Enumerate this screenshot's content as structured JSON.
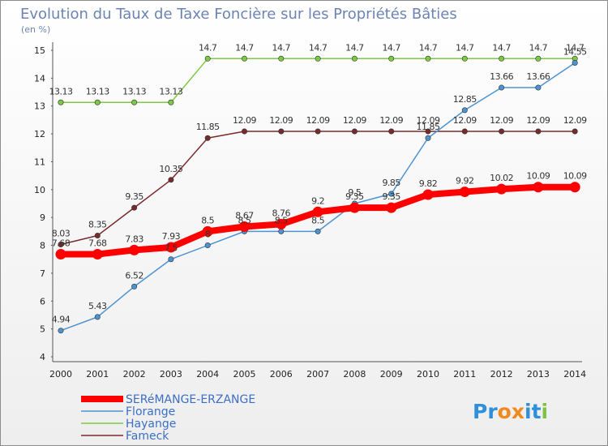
{
  "chart_data": {
    "type": "line",
    "title": "Evolution du Taux de Taxe Foncière sur les Propriétés Bâties",
    "subtitle": "(en %)",
    "x": [
      "2000",
      "2001",
      "2002",
      "2003",
      "2004",
      "2005",
      "2006",
      "2007",
      "2008",
      "2009",
      "2010",
      "2011",
      "2012",
      "2013",
      "2014"
    ],
    "yticks": [
      "4",
      "5",
      "6",
      "7",
      "8",
      "9",
      "10",
      "11",
      "12",
      "13",
      "14",
      "15"
    ],
    "ylim": [
      4,
      15
    ],
    "grid": false,
    "legend_position": "bottom-left",
    "series": [
      {
        "name": "SERéMANGE-ERZANGE",
        "color": "#ff0000",
        "values": [
          7.68,
          7.68,
          7.83,
          7.93,
          8.5,
          8.67,
          8.76,
          9.2,
          9.35,
          9.35,
          9.82,
          9.92,
          10.02,
          10.09,
          10.09
        ],
        "labels": [
          "7.68",
          "7.68",
          "7.83",
          "7.93",
          "8.5",
          "8.67",
          "8.76",
          "9.2",
          "9.35",
          "9.35",
          "9.82",
          "9.92",
          "10.02",
          "10.09",
          "10.09"
        ]
      },
      {
        "name": "Florange",
        "color": "#4e93d1",
        "values": [
          4.94,
          5.43,
          6.52,
          7.5,
          8,
          8.5,
          8.5,
          8.5,
          9.5,
          9.85,
          11.85,
          12.85,
          13.66,
          13.66,
          14.55
        ],
        "labels": [
          "4.94",
          "5.43",
          "6.52",
          "7.5",
          "8",
          "8.5",
          "8.5",
          "8.5",
          "9.5",
          "9.85",
          "11.85",
          "12.85",
          "13.66",
          "13.66",
          "14.55"
        ]
      },
      {
        "name": "Hayange",
        "color": "#7ec843",
        "values": [
          13.13,
          13.13,
          13.13,
          13.13,
          14.7,
          14.7,
          14.7,
          14.7,
          14.7,
          14.7,
          14.7,
          14.7,
          14.7,
          14.7,
          14.7
        ],
        "labels": [
          "13.13",
          "13.13",
          "13.13",
          "13.13",
          "14.7",
          "14.7",
          "14.7",
          "14.7",
          "14.7",
          "14.7",
          "14.7",
          "14.7",
          "14.7",
          "14.7",
          "14.7"
        ]
      },
      {
        "name": "Fameck",
        "color": "#7a2a2a",
        "values": [
          8.03,
          8.35,
          9.35,
          10.35,
          11.85,
          12.09,
          12.09,
          12.09,
          12.09,
          12.09,
          12.09,
          12.09,
          12.09,
          12.09,
          12.09
        ],
        "labels": [
          "8.03",
          "8.35",
          "9.35",
          "10.35",
          "11.85",
          "12.09",
          "12.09",
          "12.09",
          "12.09",
          "12.09",
          "12.09",
          "12.09",
          "12.09",
          "12.09",
          "12.09"
        ]
      }
    ]
  },
  "logo": {
    "text": "Proxiti"
  }
}
